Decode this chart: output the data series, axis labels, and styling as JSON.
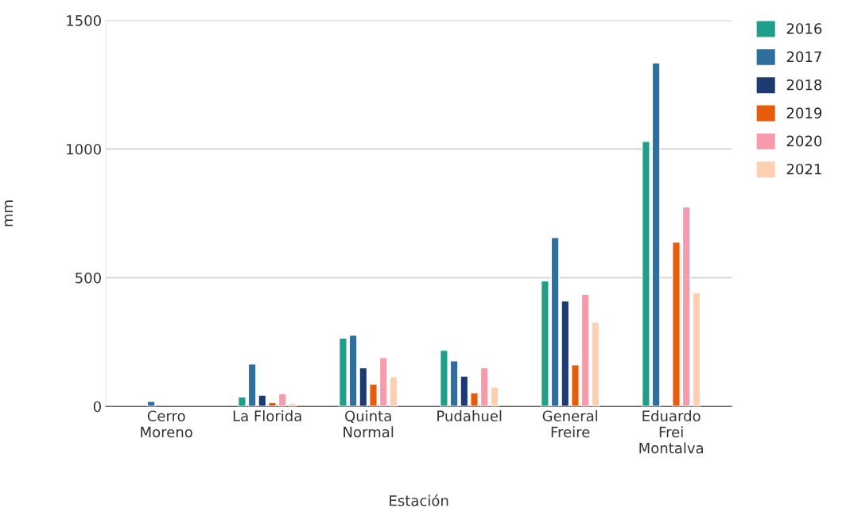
{
  "chart_data": {
    "type": "bar",
    "xlabel": "Estación",
    "ylabel": "mm",
    "categories": [
      "Cerro\nMoreno",
      "La Florida",
      "Quinta\nNormal",
      "Pudahuel",
      "General\nFreire",
      "Eduardo\nFrei\nMontalva"
    ],
    "series": [
      {
        "name": "2016",
        "color": "#1f9e89",
        "values": [
          null,
          37,
          265,
          218,
          488,
          1030
        ]
      },
      {
        "name": "2017",
        "color": "#2e6f9e",
        "values": [
          20,
          165,
          277,
          177,
          656,
          1335
        ]
      },
      {
        "name": "2018",
        "color": "#1d3a73",
        "values": [
          null,
          44,
          150,
          118,
          410,
          null
        ]
      },
      {
        "name": "2019",
        "color": "#e65c0a",
        "values": [
          null,
          15,
          87,
          53,
          162,
          638
        ]
      },
      {
        "name": "2020",
        "color": "#f79aac",
        "values": [
          null,
          50,
          190,
          150,
          435,
          775
        ]
      },
      {
        "name": "2021",
        "color": "#fdd0b1",
        "values": [
          null,
          12,
          115,
          75,
          327,
          442
        ]
      }
    ],
    "ylim": [
      0,
      1500
    ],
    "yticks": [
      0,
      500,
      1000,
      1500
    ],
    "grid": "y",
    "legend": "top right"
  }
}
